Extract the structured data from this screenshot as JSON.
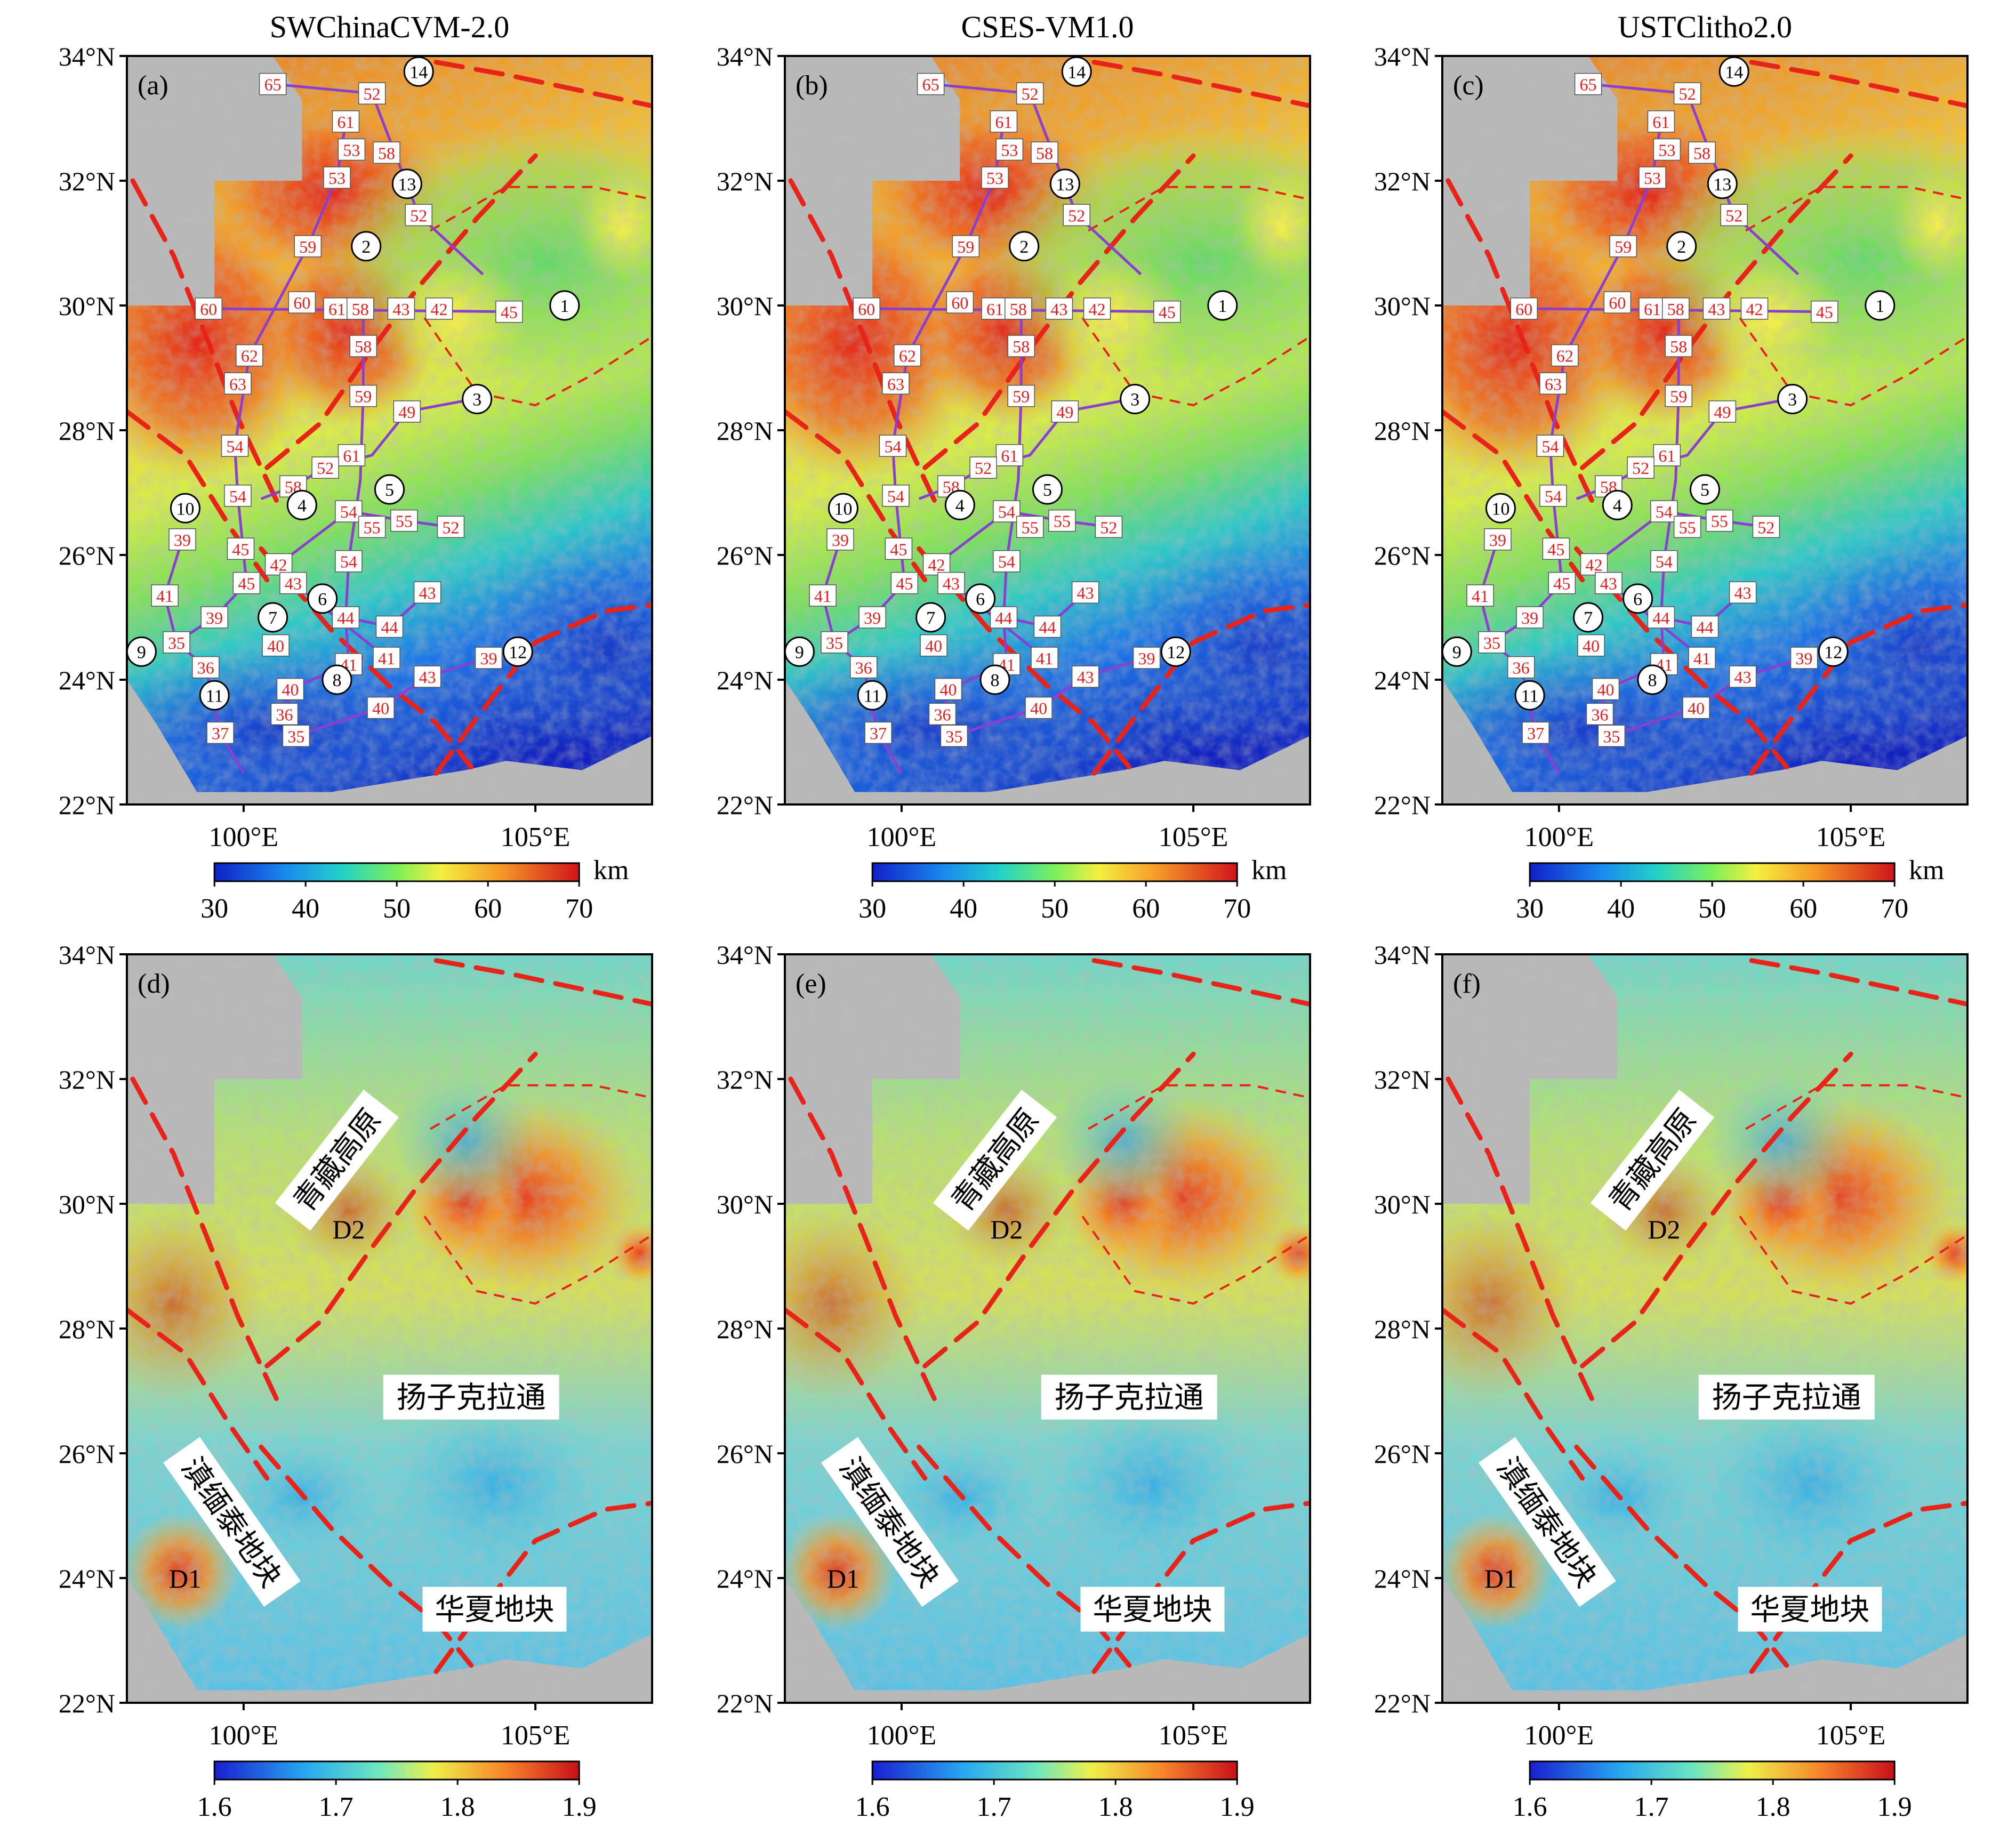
{
  "lat_labels": [
    "34°N",
    "32°N",
    "30°N",
    "28°N",
    "26°N",
    "24°N",
    "22°N"
  ],
  "lon_labels": [
    "100°E",
    "105°E"
  ],
  "panels": [
    {
      "id": "a",
      "label": "(a)",
      "title": "SWChinaCVM-2.0",
      "row": 0,
      "col": 0
    },
    {
      "id": "b",
      "label": "(b)",
      "title": "CSES-VM1.0",
      "row": 0,
      "col": 1
    },
    {
      "id": "c",
      "label": "(c)",
      "title": "USTClitho2.0",
      "row": 0,
      "col": 2
    },
    {
      "id": "d",
      "label": "(d)",
      "title": "",
      "row": 1,
      "col": 0
    },
    {
      "id": "e",
      "label": "(e)",
      "title": "",
      "row": 1,
      "col": 1
    },
    {
      "id": "f",
      "label": "(f)",
      "title": "",
      "row": 1,
      "col": 2
    }
  ],
  "colorbars": {
    "depth": {
      "ticks": [
        "30",
        "40",
        "50",
        "60",
        "70"
      ],
      "unit": "km",
      "range": [
        30,
        70
      ]
    },
    "ratio": {
      "ticks": [
        "1.6",
        "1.7",
        "1.8",
        "1.9"
      ],
      "unit": "",
      "range": [
        1.6,
        1.9
      ]
    }
  },
  "station_markers": [
    {
      "n": "1",
      "lon": 105.5,
      "lat": 30.0
    },
    {
      "n": "2",
      "lon": 102.1,
      "lat": 30.95
    },
    {
      "n": "3",
      "lon": 104.0,
      "lat": 28.5
    },
    {
      "n": "4",
      "lon": 101.0,
      "lat": 26.8
    },
    {
      "n": "5",
      "lon": 102.5,
      "lat": 27.05
    },
    {
      "n": "6",
      "lon": 101.35,
      "lat": 25.3
    },
    {
      "n": "7",
      "lon": 100.5,
      "lat": 25.0
    },
    {
      "n": "8",
      "lon": 101.6,
      "lat": 24.0
    },
    {
      "n": "9",
      "lon": 98.25,
      "lat": 24.45
    },
    {
      "n": "10",
      "lon": 99.0,
      "lat": 26.75
    },
    {
      "n": "11",
      "lon": 99.5,
      "lat": 23.75
    },
    {
      "n": "12",
      "lon": 104.7,
      "lat": 24.45
    },
    {
      "n": "13",
      "lon": 102.8,
      "lat": 31.95
    },
    {
      "n": "14",
      "lon": 103.0,
      "lat": 33.75
    }
  ],
  "depth_values": [
    {
      "v": "65",
      "lon": 100.5,
      "lat": 33.55
    },
    {
      "v": "52",
      "lon": 102.2,
      "lat": 33.4
    },
    {
      "v": "61",
      "lon": 101.75,
      "lat": 32.95
    },
    {
      "v": "53",
      "lon": 101.85,
      "lat": 32.5
    },
    {
      "v": "58",
      "lon": 102.45,
      "lat": 32.45
    },
    {
      "v": "53",
      "lon": 101.6,
      "lat": 32.05
    },
    {
      "v": "52",
      "lon": 103.0,
      "lat": 31.45
    },
    {
      "v": "59",
      "lon": 101.1,
      "lat": 30.95
    },
    {
      "v": "60",
      "lon": 99.4,
      "lat": 29.95
    },
    {
      "v": "60",
      "lon": 101.0,
      "lat": 30.05
    },
    {
      "v": "61",
      "lon": 101.6,
      "lat": 29.95
    },
    {
      "v": "58",
      "lon": 102.0,
      "lat": 29.95
    },
    {
      "v": "43",
      "lon": 102.7,
      "lat": 29.95
    },
    {
      "v": "42",
      "lon": 103.35,
      "lat": 29.95
    },
    {
      "v": "45",
      "lon": 104.55,
      "lat": 29.9
    },
    {
      "v": "58",
      "lon": 102.05,
      "lat": 29.35
    },
    {
      "v": "62",
      "lon": 100.1,
      "lat": 29.2
    },
    {
      "v": "63",
      "lon": 99.9,
      "lat": 28.75
    },
    {
      "v": "59",
      "lon": 102.05,
      "lat": 28.55
    },
    {
      "v": "49",
      "lon": 102.8,
      "lat": 28.3
    },
    {
      "v": "54",
      "lon": 99.85,
      "lat": 27.75
    },
    {
      "v": "61",
      "lon": 101.85,
      "lat": 27.6
    },
    {
      "v": "52",
      "lon": 101.4,
      "lat": 27.4
    },
    {
      "v": "58",
      "lon": 100.85,
      "lat": 27.1
    },
    {
      "v": "54",
      "lon": 99.9,
      "lat": 26.95
    },
    {
      "v": "54",
      "lon": 101.8,
      "lat": 26.7
    },
    {
      "v": "55",
      "lon": 102.2,
      "lat": 26.45
    },
    {
      "v": "55",
      "lon": 102.75,
      "lat": 26.55
    },
    {
      "v": "52",
      "lon": 103.55,
      "lat": 26.45
    },
    {
      "v": "39",
      "lon": 98.95,
      "lat": 26.25
    },
    {
      "v": "45",
      "lon": 99.95,
      "lat": 26.1
    },
    {
      "v": "42",
      "lon": 100.6,
      "lat": 25.85
    },
    {
      "v": "54",
      "lon": 101.8,
      "lat": 25.9
    },
    {
      "v": "45",
      "lon": 100.05,
      "lat": 25.55
    },
    {
      "v": "43",
      "lon": 100.85,
      "lat": 25.55
    },
    {
      "v": "41",
      "lon": 98.65,
      "lat": 25.35
    },
    {
      "v": "39",
      "lon": 99.5,
      "lat": 25.0
    },
    {
      "v": "44",
      "lon": 101.75,
      "lat": 25.0
    },
    {
      "v": "43",
      "lon": 103.15,
      "lat": 25.4
    },
    {
      "v": "44",
      "lon": 102.5,
      "lat": 24.85
    },
    {
      "v": "40",
      "lon": 100.55,
      "lat": 24.55
    },
    {
      "v": "35",
      "lon": 98.85,
      "lat": 24.6
    },
    {
      "v": "41",
      "lon": 102.45,
      "lat": 24.35
    },
    {
      "v": "41",
      "lon": 101.8,
      "lat": 24.25
    },
    {
      "v": "36",
      "lon": 99.35,
      "lat": 24.2
    },
    {
      "v": "43",
      "lon": 103.15,
      "lat": 24.05
    },
    {
      "v": "39",
      "lon": 104.2,
      "lat": 24.35
    },
    {
      "v": "40",
      "lon": 100.8,
      "lat": 23.85
    },
    {
      "v": "36",
      "lon": 100.7,
      "lat": 23.45
    },
    {
      "v": "40",
      "lon": 102.35,
      "lat": 23.55
    },
    {
      "v": "37",
      "lon": 99.6,
      "lat": 23.15
    },
    {
      "v": "35",
      "lon": 100.9,
      "lat": 23.1
    }
  ],
  "region_labels": [
    {
      "text": "青藏高原",
      "lon": 101.6,
      "lat": 30.7,
      "rot": -52
    },
    {
      "text": "扬子克拉通",
      "lon": 103.9,
      "lat": 26.9,
      "rot": 0
    },
    {
      "text": "滇缅泰地块",
      "lon": 99.8,
      "lat": 24.9,
      "rot": 55
    },
    {
      "text": "华夏地块",
      "lon": 104.3,
      "lat": 23.5,
      "rot": 0
    }
  ],
  "point_labels": [
    {
      "text": "D1",
      "lon": 99.0,
      "lat": 24.0
    },
    {
      "text": "D2",
      "lon": 101.8,
      "lat": 29.6
    }
  ],
  "colors": {
    "fault": "#e8231a",
    "profile": "#8a3fd1",
    "value_text": "#e02020",
    "frame": "#000000"
  }
}
